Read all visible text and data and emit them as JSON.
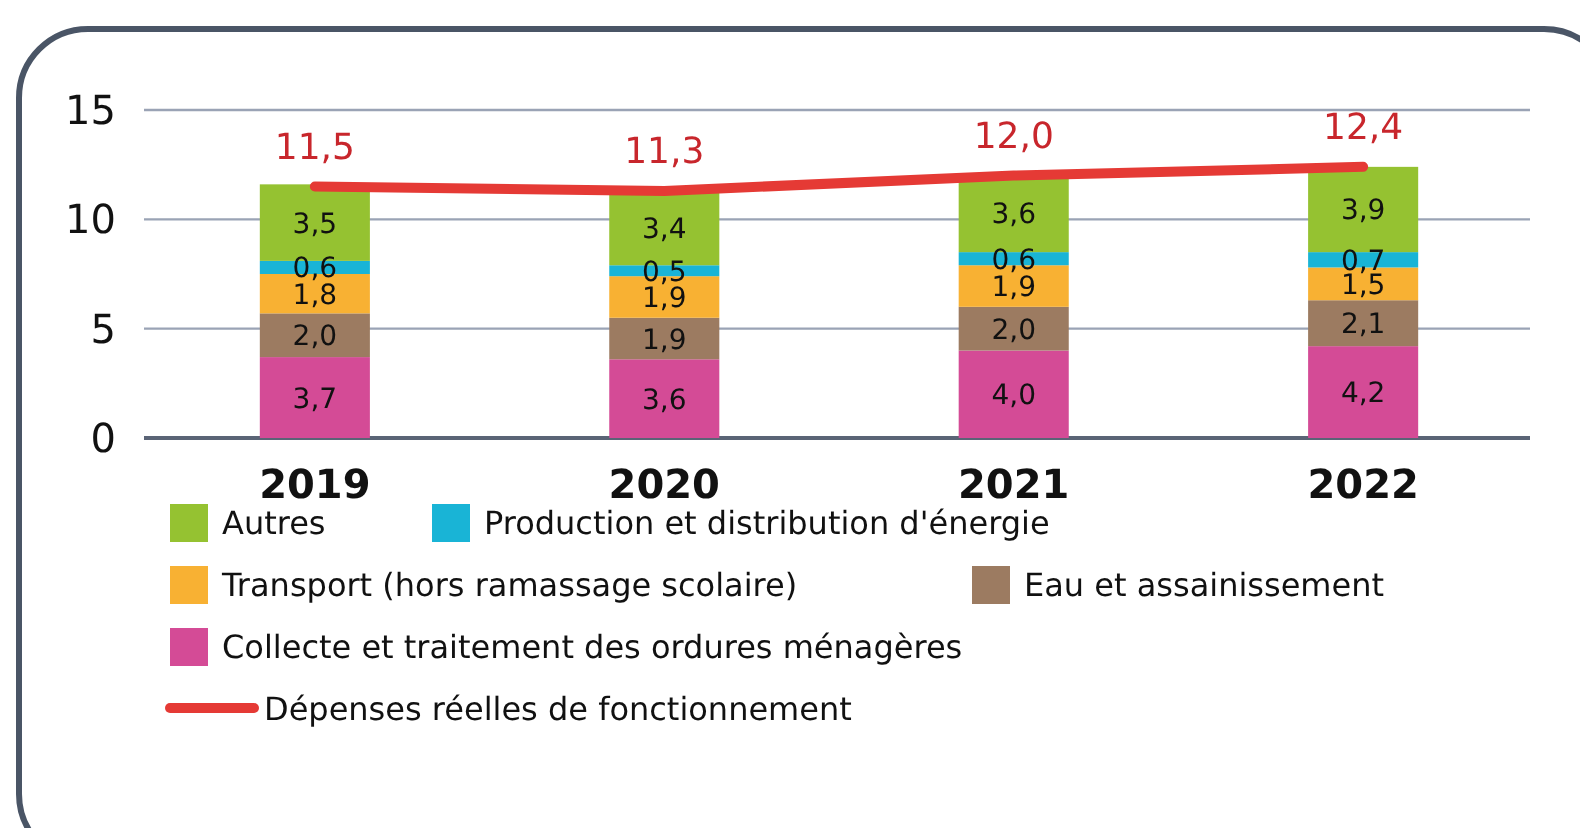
{
  "chart_data": {
    "type": "bar",
    "stacked": true,
    "categories": [
      "2019",
      "2020",
      "2021",
      "2022"
    ],
    "ylim": [
      0,
      15
    ],
    "yticks": [
      0,
      5,
      10,
      15
    ],
    "grid": "y",
    "legend": "bottom",
    "series": [
      {
        "name": "Collecte et traitement des ordures ménagères",
        "color": "#d44b96",
        "values": [
          3.7,
          3.6,
          4.0,
          4.2
        ],
        "value_labels": [
          "3,7",
          "3,6",
          "4,0",
          "4,2"
        ]
      },
      {
        "name": "Eau et assainissement",
        "color": "#9c7b61",
        "values": [
          2.0,
          1.9,
          2.0,
          2.1
        ],
        "value_labels": [
          "2,0",
          "1,9",
          "2,0",
          "2,1"
        ]
      },
      {
        "name": "Transport (hors ramassage scolaire)",
        "color": "#f8b133",
        "values": [
          1.8,
          1.9,
          1.9,
          1.5
        ],
        "value_labels": [
          "1,8",
          "1,9",
          "1,9",
          "1,5"
        ]
      },
      {
        "name": "Production et distribution d'énergie",
        "color": "#19b4d6",
        "values": [
          0.6,
          0.5,
          0.6,
          0.7
        ],
        "value_labels": [
          "0,6",
          "0,5",
          "0,6",
          "0,7"
        ]
      },
      {
        "name": "Autres",
        "color": "#95c231",
        "values": [
          3.5,
          3.4,
          3.6,
          3.9
        ],
        "value_labels": [
          "3,5",
          "3,4",
          "3,6",
          "3,9"
        ]
      },
      {
        "name": "Dépenses réelles de fonctionnement",
        "type": "line",
        "color": "#e53a35",
        "values": [
          11.5,
          11.3,
          12.0,
          12.4
        ],
        "value_labels": [
          "11,5",
          "11,3",
          "12,0",
          "12,4"
        ]
      }
    ]
  }
}
